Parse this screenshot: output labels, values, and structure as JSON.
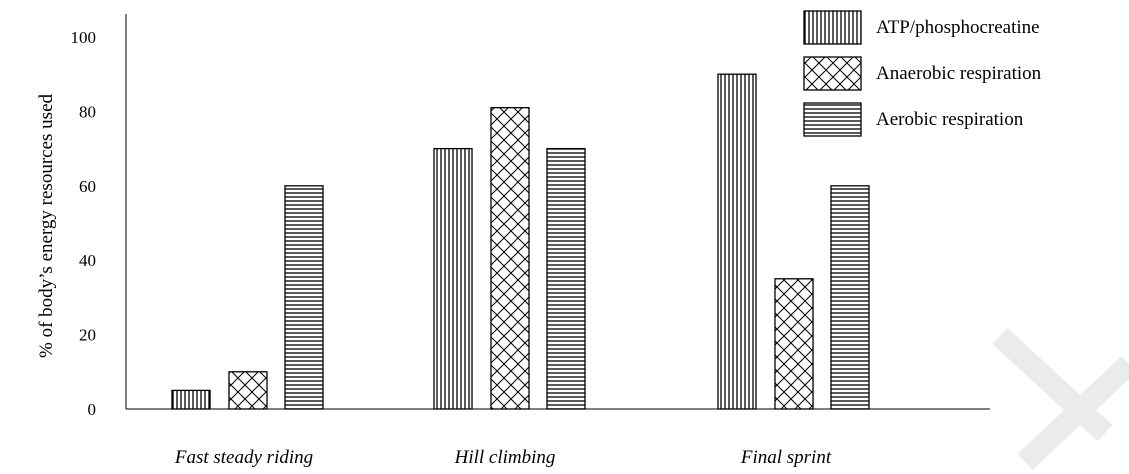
{
  "chart_data": {
    "type": "bar",
    "categories": [
      "Fast steady riding",
      "Hill climbing",
      "Final sprint"
    ],
    "series": [
      {
        "name": "ATP/phosphocreatine",
        "pattern": "vertical-lines",
        "values": [
          5,
          70,
          90
        ]
      },
      {
        "name": "Anaerobic respiration",
        "pattern": "crosshatch",
        "values": [
          10,
          81,
          35
        ]
      },
      {
        "name": "Aerobic respiration",
        "pattern": "horizontal-lines",
        "values": [
          60,
          70,
          60
        ]
      }
    ],
    "title": "",
    "xlabel": "",
    "ylabel": "% of body’s energy resources used",
    "ylim": [
      0,
      100
    ],
    "yticks": [
      0,
      20,
      40,
      60,
      80,
      100
    ],
    "grid": false,
    "legend_position": "top-right",
    "colors": {
      "stroke": "#000000",
      "background": "#ffffff",
      "watermark": "#ebebeb"
    }
  }
}
